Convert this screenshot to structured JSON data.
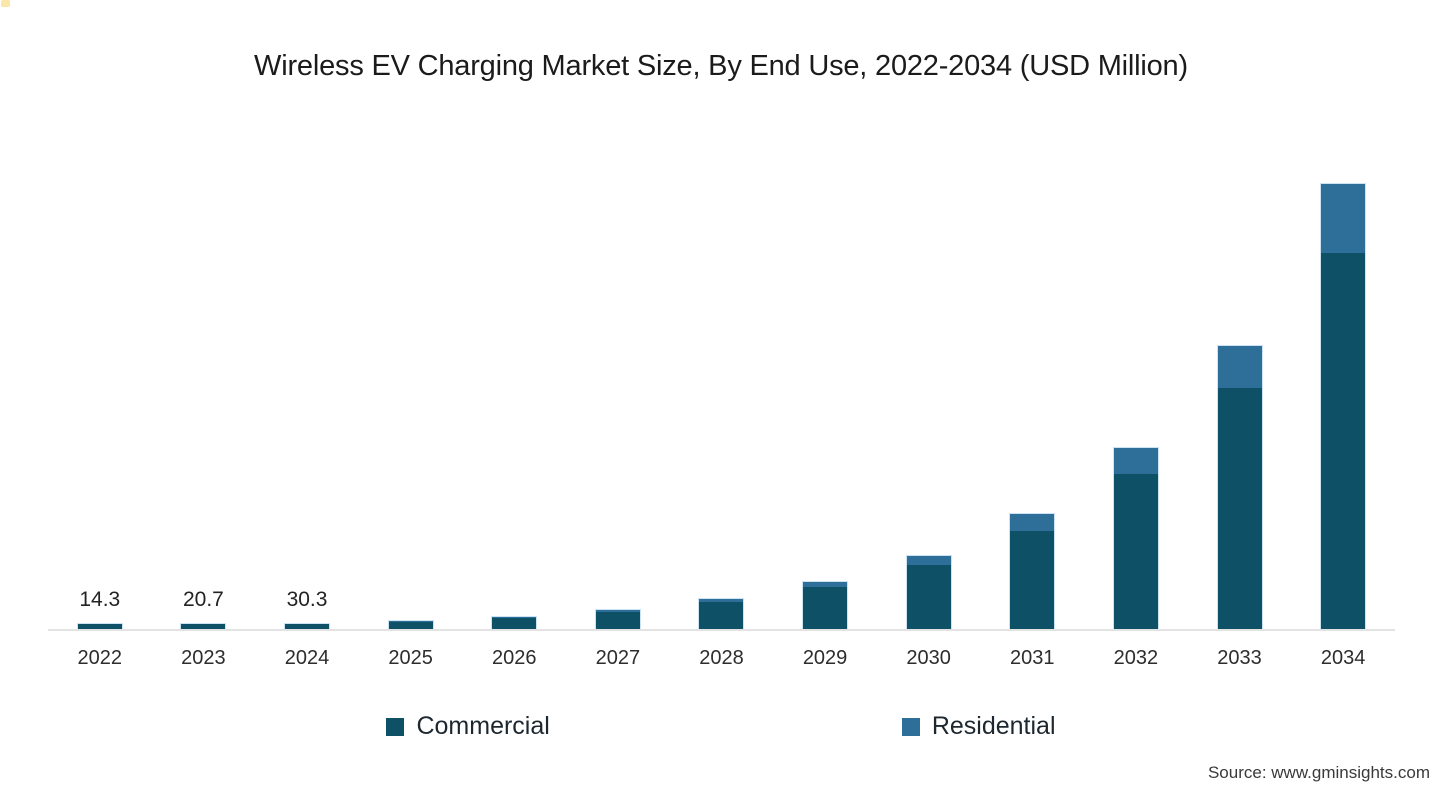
{
  "page": {
    "background": "#ffffff"
  },
  "chart": {
    "source_note": "Source: www.gminsights.com"
  },
  "chart_data": {
    "type": "bar",
    "stacked": true,
    "title": "Wireless EV Charging Market Size, By End Use, 2022-2034 (USD Million)",
    "unit": "USD Million",
    "categories": [
      "2022",
      "2023",
      "2024",
      "2025",
      "2026",
      "2027",
      "2028",
      "2029",
      "2030",
      "2031",
      "2032",
      "2033",
      "2034"
    ],
    "series": [
      {
        "name": "Commercial",
        "color": "#0e5065",
        "values": [
          13.2,
          19.1,
          27.8,
          43.4,
          67.8,
          105.8,
          165.5,
          259,
          398,
          605,
          958,
          1494,
          2329
        ]
      },
      {
        "name": "Residential",
        "color": "#2e6f99",
        "values": [
          1.1,
          1.6,
          2.5,
          4.2,
          6.9,
          11.2,
          18.5,
          30,
          56,
          107,
          160,
          261,
          427
        ]
      }
    ],
    "totals": [
      14.3,
      20.7,
      30.3,
      47.6,
      74.7,
      117,
      184,
      289,
      454,
      712,
      1118,
      1755,
      2756
    ],
    "value_labels": [
      "14.3",
      "20.7",
      "30.3",
      "",
      "",
      "",
      "",
      "",
      "",
      "",
      "",
      "",
      ""
    ],
    "legend_position": "bottom",
    "grid": false,
    "y_axis_visible": false,
    "axis_line_color": "#e3e3e3"
  }
}
